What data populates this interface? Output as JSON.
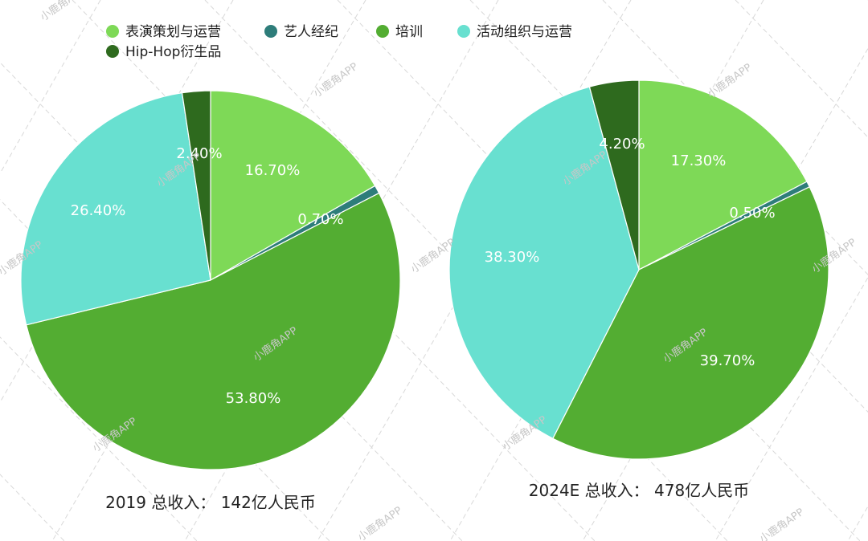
{
  "chart_data": [
    {
      "type": "pie",
      "title": "2019 总收入：  142亿人民币",
      "slices": [
        {
          "name": "表演策划与运营",
          "value": 16.7,
          "label": "16.70%"
        },
        {
          "name": "艺人经纪",
          "value": 0.7,
          "label": "0.70%"
        },
        {
          "name": "培训",
          "value": 53.8,
          "label": "53.80%"
        },
        {
          "name": "活动组织与运营",
          "value": 26.4,
          "label": "26.40%"
        },
        {
          "name": "Hip-Hop衍生品",
          "value": 2.4,
          "label": "2.40%"
        }
      ]
    },
    {
      "type": "pie",
      "title": "2024E 总收入：  478亿人民币",
      "slices": [
        {
          "name": "表演策划与运营",
          "value": 17.3,
          "label": "17.30%"
        },
        {
          "name": "艺人经纪",
          "value": 0.5,
          "label": "0.50%"
        },
        {
          "name": "培训",
          "value": 39.7,
          "label": "39.70%"
        },
        {
          "name": "活动组织与运营",
          "value": 38.3,
          "label": "38.30%"
        },
        {
          "name": "Hip-Hop衍生品",
          "value": 4.2,
          "label": "4.20%"
        }
      ]
    }
  ],
  "legend": [
    {
      "name": "表演策划与运营",
      "color": "#7ed957"
    },
    {
      "name": "艺人经纪",
      "color": "#2e7d7a"
    },
    {
      "name": "培训",
      "color": "#53ad32"
    },
    {
      "name": "活动组织与运营",
      "color": "#68e0d0"
    },
    {
      "name": "Hip-Hop衍生品",
      "color": "#2e6a1e"
    }
  ],
  "watermark": "小鹿角APP"
}
